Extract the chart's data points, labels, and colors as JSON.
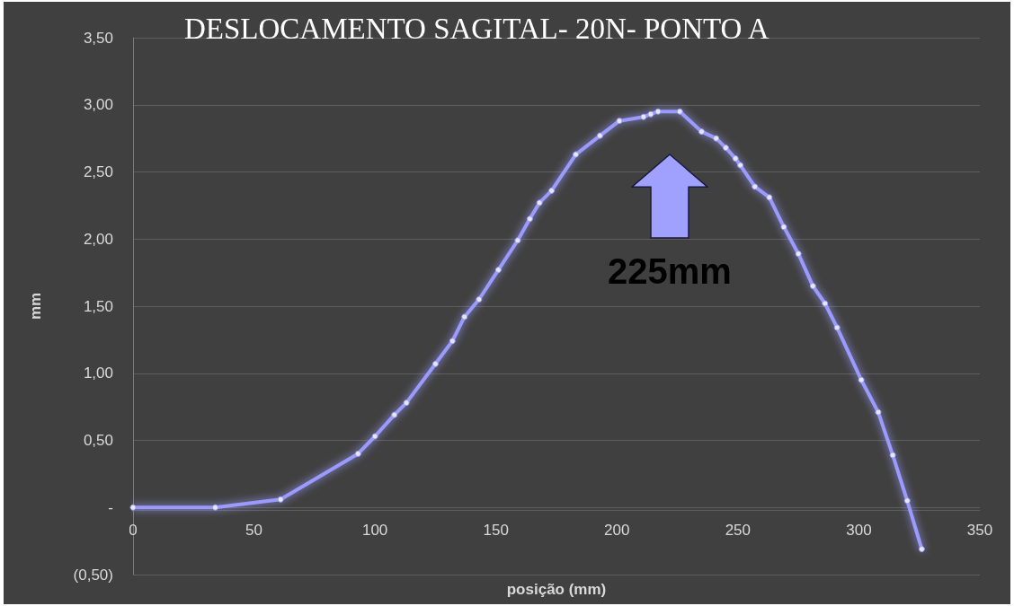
{
  "chart_data": {
    "type": "line",
    "title": "DESLOCAMENTO SAGITAL- 20N- PONTO A",
    "xlabel": "posição (mm)",
    "ylabel": "mm",
    "x": [
      0,
      34,
      61,
      93,
      100,
      108,
      113,
      125,
      132,
      137,
      143,
      151,
      159,
      164,
      168,
      173,
      183,
      193,
      201,
      211,
      214,
      217,
      226,
      235,
      241,
      245,
      249,
      251,
      257,
      263,
      269,
      275,
      281,
      286,
      291,
      301,
      308,
      314,
      320,
      326
    ],
    "series": [
      {
        "color": "#9a9aff",
        "values": [
          0,
          0,
          0.06,
          0.4,
          0.53,
          0.69,
          0.78,
          1.07,
          1.24,
          1.42,
          1.55,
          1.77,
          1.99,
          2.15,
          2.27,
          2.36,
          2.63,
          2.77,
          2.88,
          2.91,
          2.93,
          2.95,
          2.95,
          2.8,
          2.75,
          2.68,
          2.6,
          2.55,
          2.39,
          2.31,
          2.09,
          1.89,
          1.65,
          1.52,
          1.34,
          0.95,
          0.71,
          0.39,
          0.05,
          -0.31
        ]
      }
    ],
    "xlim": [
      0,
      350
    ],
    "xticks": [
      0,
      50,
      100,
      150,
      200,
      250,
      300,
      350
    ],
    "ylim": [
      -0.5,
      3.5
    ],
    "yticks": [
      {
        "value": -0.5,
        "label": "(0,50)"
      },
      {
        "value": 0,
        "label": "-"
      },
      {
        "value": 0.5,
        "label": "0,50"
      },
      {
        "value": 1,
        "label": "1,00"
      },
      {
        "value": 1.5,
        "label": "1,50"
      },
      {
        "value": 2,
        "label": "2,00"
      },
      {
        "value": 2.5,
        "label": "2,50"
      },
      {
        "value": 3,
        "label": "3,00"
      },
      {
        "value": 3.5,
        "label": "3,50"
      }
    ],
    "grid": "y",
    "marker": "circle",
    "line_style": "solid",
    "annotations": [
      "225mm"
    ]
  }
}
